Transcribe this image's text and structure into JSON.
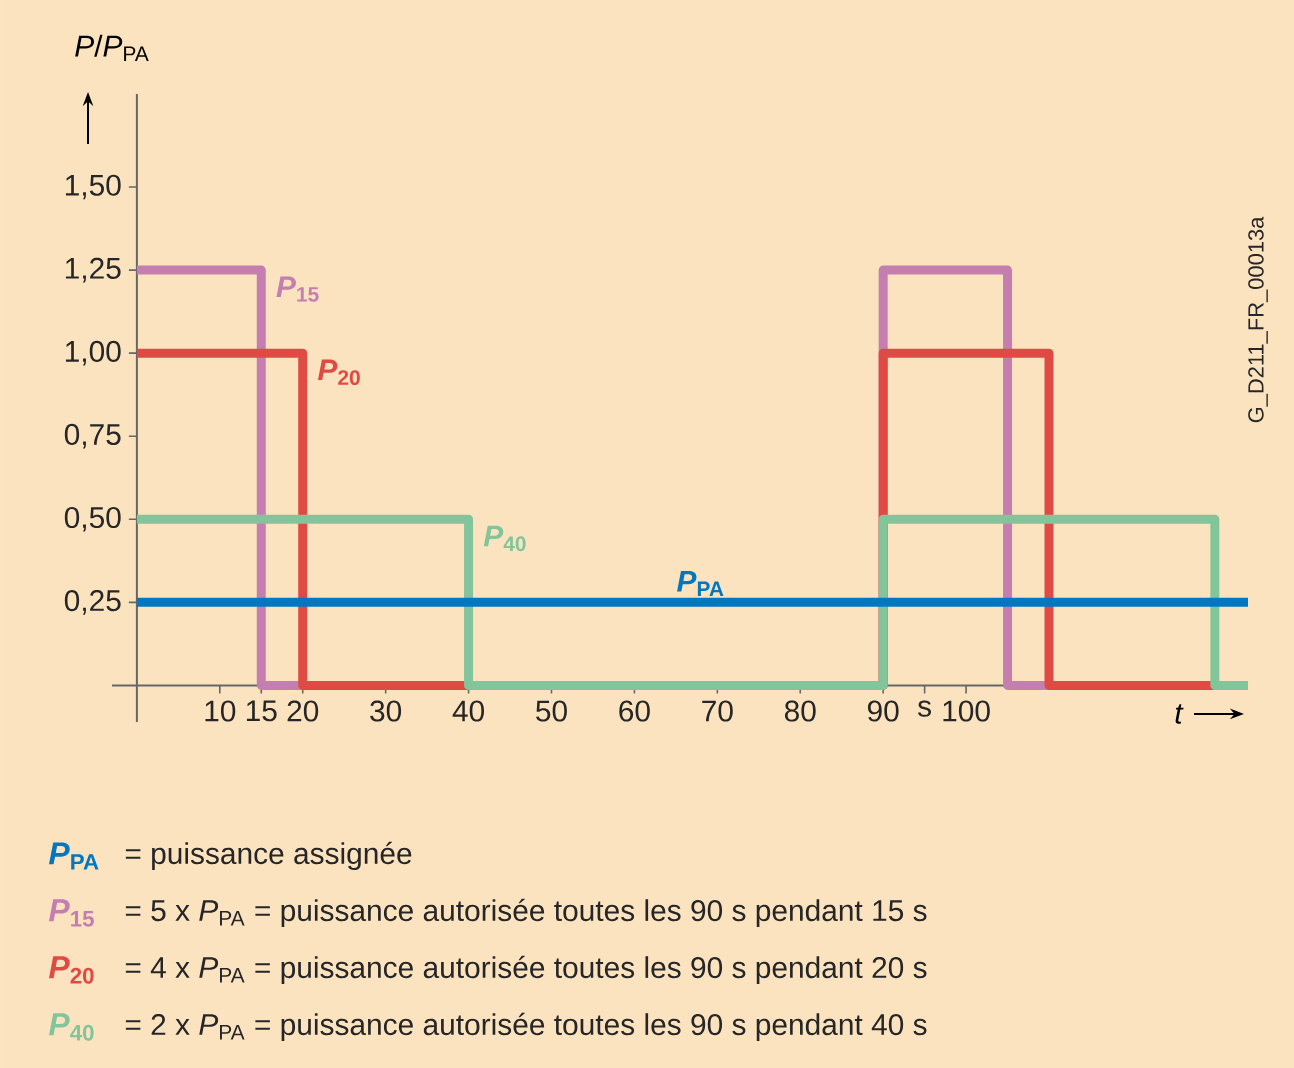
{
  "chart_data": {
    "type": "step",
    "xlabel": "*t*",
    "ylabel": "*P*/*P*$_{PA}$",
    "xlim": [
      -3,
      134
    ],
    "ylim": [
      -0.11,
      1.78
    ],
    "xticks": [
      10,
      15,
      20,
      30,
      40,
      50,
      60,
      70,
      80,
      90,
      {
        "value": 95,
        "label": "s"
      },
      100
    ],
    "yticks": [
      {
        "value": 0.25,
        "label": "0,25"
      },
      {
        "value": 0.5,
        "label": "0,50"
      },
      {
        "value": 0.75,
        "label": "0,75"
      },
      {
        "value": 1.0,
        "label": "1,00"
      },
      {
        "value": 1.25,
        "label": "1,25"
      },
      {
        "value": 1.5,
        "label": "1,50"
      }
    ],
    "grid": false,
    "legend": "bottom",
    "series": [
      {
        "name": "*P*$_{PA}$",
        "color": "#0077c0",
        "x": [
          0,
          134
        ],
        "values": [
          0.25,
          0.25
        ]
      },
      {
        "name": "*P*$_{15}$",
        "color": "#c47fb0",
        "x": [
          0,
          15,
          90,
          105,
          134
        ],
        "values": [
          1.25,
          0,
          1.25,
          0,
          0
        ]
      },
      {
        "name": "*P*$_{20}$",
        "color": "#e04a44",
        "x": [
          0,
          20,
          90,
          110,
          134
        ],
        "values": [
          1.0,
          0,
          1.0,
          0,
          0
        ]
      },
      {
        "name": "*P*$_{40}$",
        "color": "#83c59a",
        "x": [
          0,
          40,
          90,
          130,
          134
        ],
        "values": [
          0.5,
          0,
          0.5,
          0,
          0
        ]
      }
    ],
    "annotations": [
      "= puissance assignée",
      "= 5 x *P*$_{PA}$ = puissance autorisée toutes les 90 s pendant 15 s",
      "= 4 x *P*$_{PA}$ = puissance autorisée toutes les 90 s pendant 20 s",
      "= 2 x *P*$_{PA}$ = puissance autorisée toutes les 90 s pendant 40 s",
      "G_D211_FR_00013a"
    ]
  }
}
